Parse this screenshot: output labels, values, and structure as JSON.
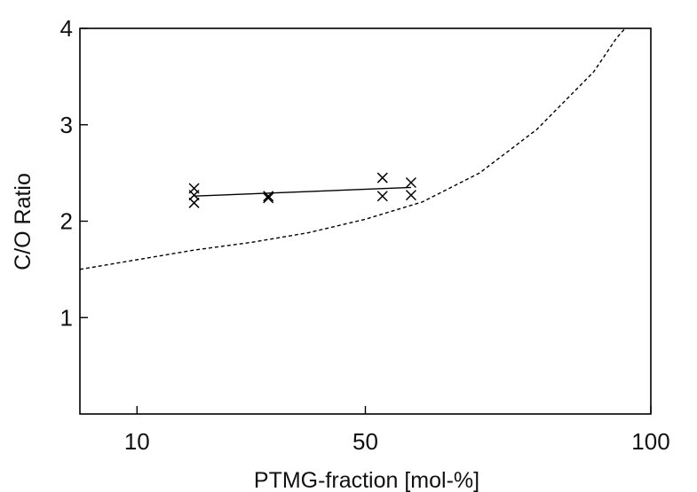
{
  "chart_data": {
    "type": "scatter",
    "title": "",
    "xlabel": "PTMG-fraction [mol-%]",
    "ylabel": "C/O Ratio",
    "xlim": [
      0,
      100
    ],
    "ylim": [
      0,
      4
    ],
    "x_ticks": [
      10,
      50,
      100
    ],
    "x_tick_labels": [
      "10",
      "50",
      "100"
    ],
    "y_ticks": [
      1,
      2,
      3,
      4
    ],
    "y_tick_labels": [
      "1",
      "2",
      "3",
      "4"
    ],
    "grid": false,
    "legend": "none",
    "series": [
      {
        "style": "x-markers",
        "points": [
          {
            "x": 20,
            "y": 2.34
          },
          {
            "x": 20,
            "y": 2.27
          },
          {
            "x": 20,
            "y": 2.19
          },
          {
            "x": 33,
            "y": 2.26
          },
          {
            "x": 33,
            "y": 2.24
          },
          {
            "x": 53,
            "y": 2.45
          },
          {
            "x": 53,
            "y": 2.26
          },
          {
            "x": 58,
            "y": 2.4
          },
          {
            "x": 58,
            "y": 2.27
          }
        ]
      },
      {
        "style": "solid-line",
        "points": [
          {
            "x": 20,
            "y": 2.26
          },
          {
            "x": 58,
            "y": 2.35
          }
        ]
      },
      {
        "style": "dashed-curve",
        "points": [
          {
            "x": 0,
            "y": 1.5
          },
          {
            "x": 10,
            "y": 1.6
          },
          {
            "x": 20,
            "y": 1.7
          },
          {
            "x": 30,
            "y": 1.78
          },
          {
            "x": 40,
            "y": 1.88
          },
          {
            "x": 50,
            "y": 2.02
          },
          {
            "x": 60,
            "y": 2.2
          },
          {
            "x": 70,
            "y": 2.5
          },
          {
            "x": 80,
            "y": 2.95
          },
          {
            "x": 90,
            "y": 3.55
          },
          {
            "x": 94,
            "y": 3.9
          },
          {
            "x": 95.5,
            "y": 4.0
          }
        ]
      }
    ]
  }
}
